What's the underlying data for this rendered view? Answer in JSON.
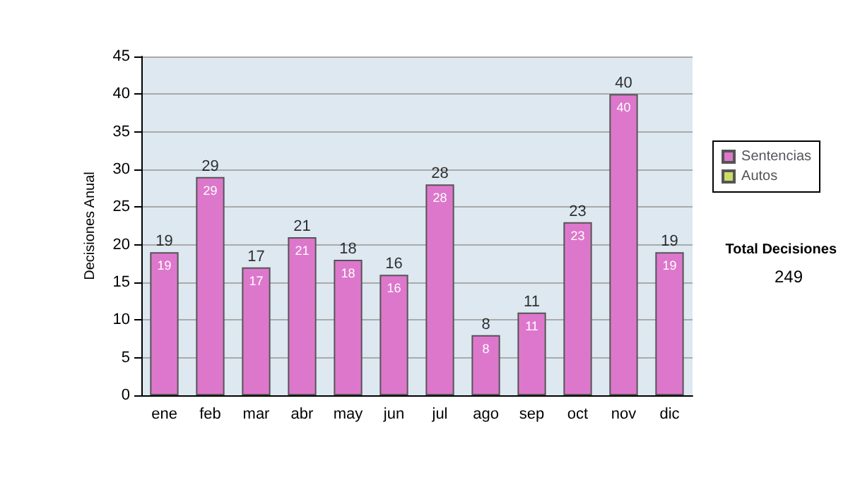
{
  "chart_data": {
    "type": "bar",
    "stacked": true,
    "categories": [
      "ene",
      "feb",
      "mar",
      "abr",
      "may",
      "jun",
      "jul",
      "ago",
      "sep",
      "oct",
      "nov",
      "dic"
    ],
    "series": [
      {
        "name": "Sentencias",
        "color": "#dd77cc",
        "values": [
          19,
          29,
          17,
          21,
          18,
          16,
          28,
          8,
          11,
          23,
          40,
          19
        ],
        "value_labels": [
          "19",
          "29",
          "17",
          "21",
          "18",
          "16",
          "28",
          "8",
          "11",
          "23",
          "40",
          "19"
        ]
      },
      {
        "name": "Autos",
        "color": "#ccdd66",
        "values": [
          0,
          0,
          0,
          0,
          0,
          0,
          0,
          0,
          0,
          0,
          0,
          0
        ]
      }
    ],
    "totals": [
      "19",
      "29",
      "17",
      "21",
      "18",
      "16",
      "28",
      "8",
      "11",
      "23",
      "40",
      "19"
    ],
    "ylabel": "Decisiones Anual",
    "ylim": [
      0,
      45
    ],
    "yticks": [
      0,
      5,
      10,
      15,
      20,
      25,
      30,
      35,
      40,
      45
    ],
    "grid": "y",
    "legend": "right",
    "annotations": [
      "Total Decisiones",
      "249"
    ]
  }
}
